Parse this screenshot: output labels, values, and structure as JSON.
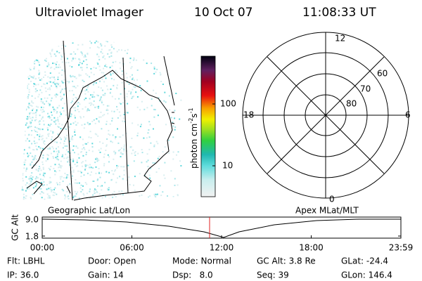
{
  "header": {
    "instrument": "Ultraviolet Imager",
    "date": "10 Oct 07",
    "time": "11:08:33 UT"
  },
  "colorbar": {
    "label": "photon cm",
    "exp1": "-2",
    "unit2": "s",
    "exp2": "-1",
    "ticks": [
      "100",
      "10"
    ]
  },
  "polar": {
    "mlt": [
      "12",
      "18",
      "6",
      "0"
    ],
    "mlat": [
      "60",
      "70",
      "80"
    ]
  },
  "panel_labels": {
    "left": "Geographic Lat/Lon",
    "right": "Apex MLat/MLT"
  },
  "timeline": {
    "ylabel": "GC Alt",
    "yticks": [
      "9.0",
      "1.8"
    ],
    "xticks": [
      "00:00",
      "06:00",
      "12:00",
      "18:00",
      "23:59"
    ]
  },
  "info": [
    [
      "Flt: LBHL",
      "Door: Open",
      "Mode: Normal",
      "GC Alt: 3.8 Re",
      "GLat: -24.4"
    ],
    [
      "IP: 36.0",
      "Gain: 14",
      "Dsp:   8.0",
      "Seq: 39",
      "GLon: 146.4"
    ]
  ]
}
